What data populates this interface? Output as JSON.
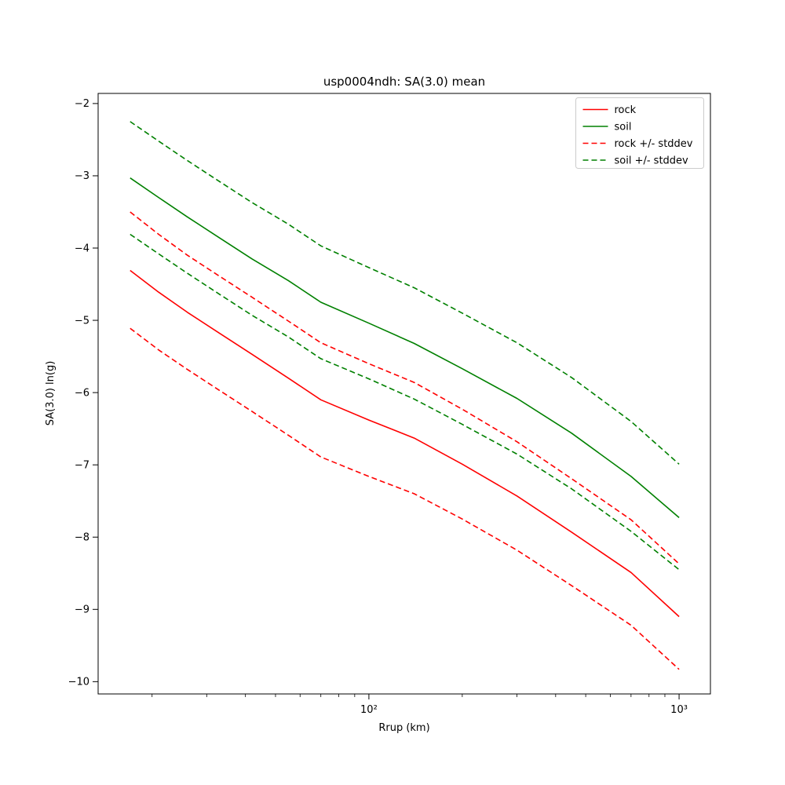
{
  "chart_data": {
    "type": "line",
    "title": "usp0004ndh: SA(3.0) mean",
    "xlabel": "Rrup (km)",
    "ylabel": "SA(3.0) ln(g)",
    "xscale": "log",
    "grid": false,
    "xlim": [
      13.4,
      1262
    ],
    "ylim": [
      -10.17,
      -1.86
    ],
    "yticks": [
      -2,
      -3,
      -4,
      -5,
      -6,
      -7,
      -8,
      -9,
      -10
    ],
    "xticks_major": [
      {
        "value": 100,
        "label": "10²"
      },
      {
        "value": 1000,
        "label": "10³"
      }
    ],
    "x": [
      17,
      21,
      26,
      33,
      42,
      55,
      70,
      100,
      140,
      200,
      300,
      450,
      700,
      1000
    ],
    "series": [
      {
        "name": "rock",
        "color": "#ff0000",
        "dash": false,
        "values": [
          -4.31,
          -4.61,
          -4.89,
          -5.18,
          -5.47,
          -5.8,
          -6.1,
          -6.38,
          -6.63,
          -6.99,
          -7.43,
          -7.93,
          -8.49,
          -9.1
        ]
      },
      {
        "name": "soil",
        "color": "#008000",
        "dash": false,
        "values": [
          -3.03,
          -3.3,
          -3.57,
          -3.86,
          -4.15,
          -4.45,
          -4.75,
          -5.04,
          -5.32,
          -5.67,
          -6.08,
          -6.56,
          -7.16,
          -7.73
        ]
      },
      {
        "name": "rock-plus-stddev",
        "color": "#ff0000",
        "dash": true,
        "values": [
          -3.5,
          -3.81,
          -4.1,
          -4.39,
          -4.68,
          -5.01,
          -5.31,
          -5.6,
          -5.86,
          -6.23,
          -6.68,
          -7.19,
          -7.76,
          -8.37
        ]
      },
      {
        "name": "rock-minus-stddev",
        "color": "#ff0000",
        "dash": true,
        "values": [
          -5.11,
          -5.41,
          -5.68,
          -5.97,
          -6.26,
          -6.59,
          -6.89,
          -7.16,
          -7.4,
          -7.75,
          -8.18,
          -8.67,
          -9.22,
          -9.83
        ]
      },
      {
        "name": "soil-plus-stddev",
        "color": "#008000",
        "dash": true,
        "values": [
          -2.25,
          -2.52,
          -2.79,
          -3.08,
          -3.37,
          -3.67,
          -3.97,
          -4.27,
          -4.55,
          -4.9,
          -5.31,
          -5.79,
          -6.4,
          -6.99
        ]
      },
      {
        "name": "soil-minus-stddev",
        "color": "#008000",
        "dash": true,
        "values": [
          -3.81,
          -4.08,
          -4.35,
          -4.64,
          -4.93,
          -5.23,
          -5.53,
          -5.81,
          -6.09,
          -6.44,
          -6.85,
          -7.33,
          -7.92,
          -8.45
        ]
      }
    ],
    "legend": [
      {
        "label": "rock",
        "color": "#ff0000",
        "dash": false
      },
      {
        "label": "soil",
        "color": "#008000",
        "dash": false
      },
      {
        "label": "rock +/- stddev",
        "color": "#ff0000",
        "dash": true
      },
      {
        "label": "soil +/- stddev",
        "color": "#008000",
        "dash": true
      }
    ],
    "legend_position": "upper right"
  }
}
